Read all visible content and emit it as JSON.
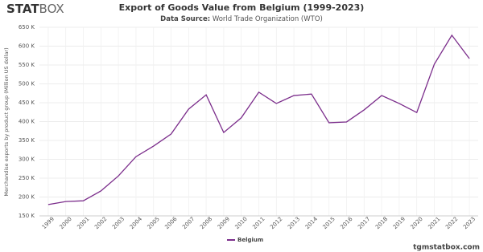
{
  "logo": [
    "STAT",
    "BOX"
  ],
  "site": "tgmstatbox.com",
  "chart_data": {
    "type": "line",
    "title": "Export of Goods Value from Belgium (1999-2023)",
    "subtitle_label": "Data Source:",
    "subtitle": "World Trade Organization (WTO)",
    "y_label": "Merchandise exports by product group (Million US dollar)",
    "categories": [
      "1999",
      "2000",
      "2001",
      "2002",
      "2003",
      "2004",
      "2005",
      "2006",
      "2007",
      "2008",
      "2009",
      "2010",
      "2011",
      "2012",
      "2013",
      "2014",
      "2015",
      "2016",
      "2017",
      "2018",
      "2019",
      "2020",
      "2021",
      "2022",
      "2023"
    ],
    "series": [
      {
        "name": "Belgium",
        "color": "#7b2d8b",
        "values": [
          180000,
          188000,
          190000,
          216000,
          256000,
          307000,
          335000,
          367000,
          433000,
          471000,
          371000,
          410000,
          478000,
          448000,
          469000,
          473000,
          397000,
          399000,
          431000,
          469000,
          448000,
          424000,
          552000,
          629000,
          567000
        ]
      }
    ],
    "ylim": [
      150000,
      650000
    ],
    "yticks": [
      {
        "value": 150000,
        "label": "150 K"
      },
      {
        "value": 200000,
        "label": "200 K"
      },
      {
        "value": 250000,
        "label": "250 K"
      },
      {
        "value": 300000,
        "label": "300 K"
      },
      {
        "value": 350000,
        "label": "350 K"
      },
      {
        "value": 400000,
        "label": "400 K"
      },
      {
        "value": 450000,
        "label": "450 K"
      },
      {
        "value": 500000,
        "label": "500 K"
      },
      {
        "value": 550000,
        "label": "550 K"
      },
      {
        "value": 600000,
        "label": "600 K"
      },
      {
        "value": 650000,
        "label": "650 K"
      }
    ],
    "grid": true
  }
}
